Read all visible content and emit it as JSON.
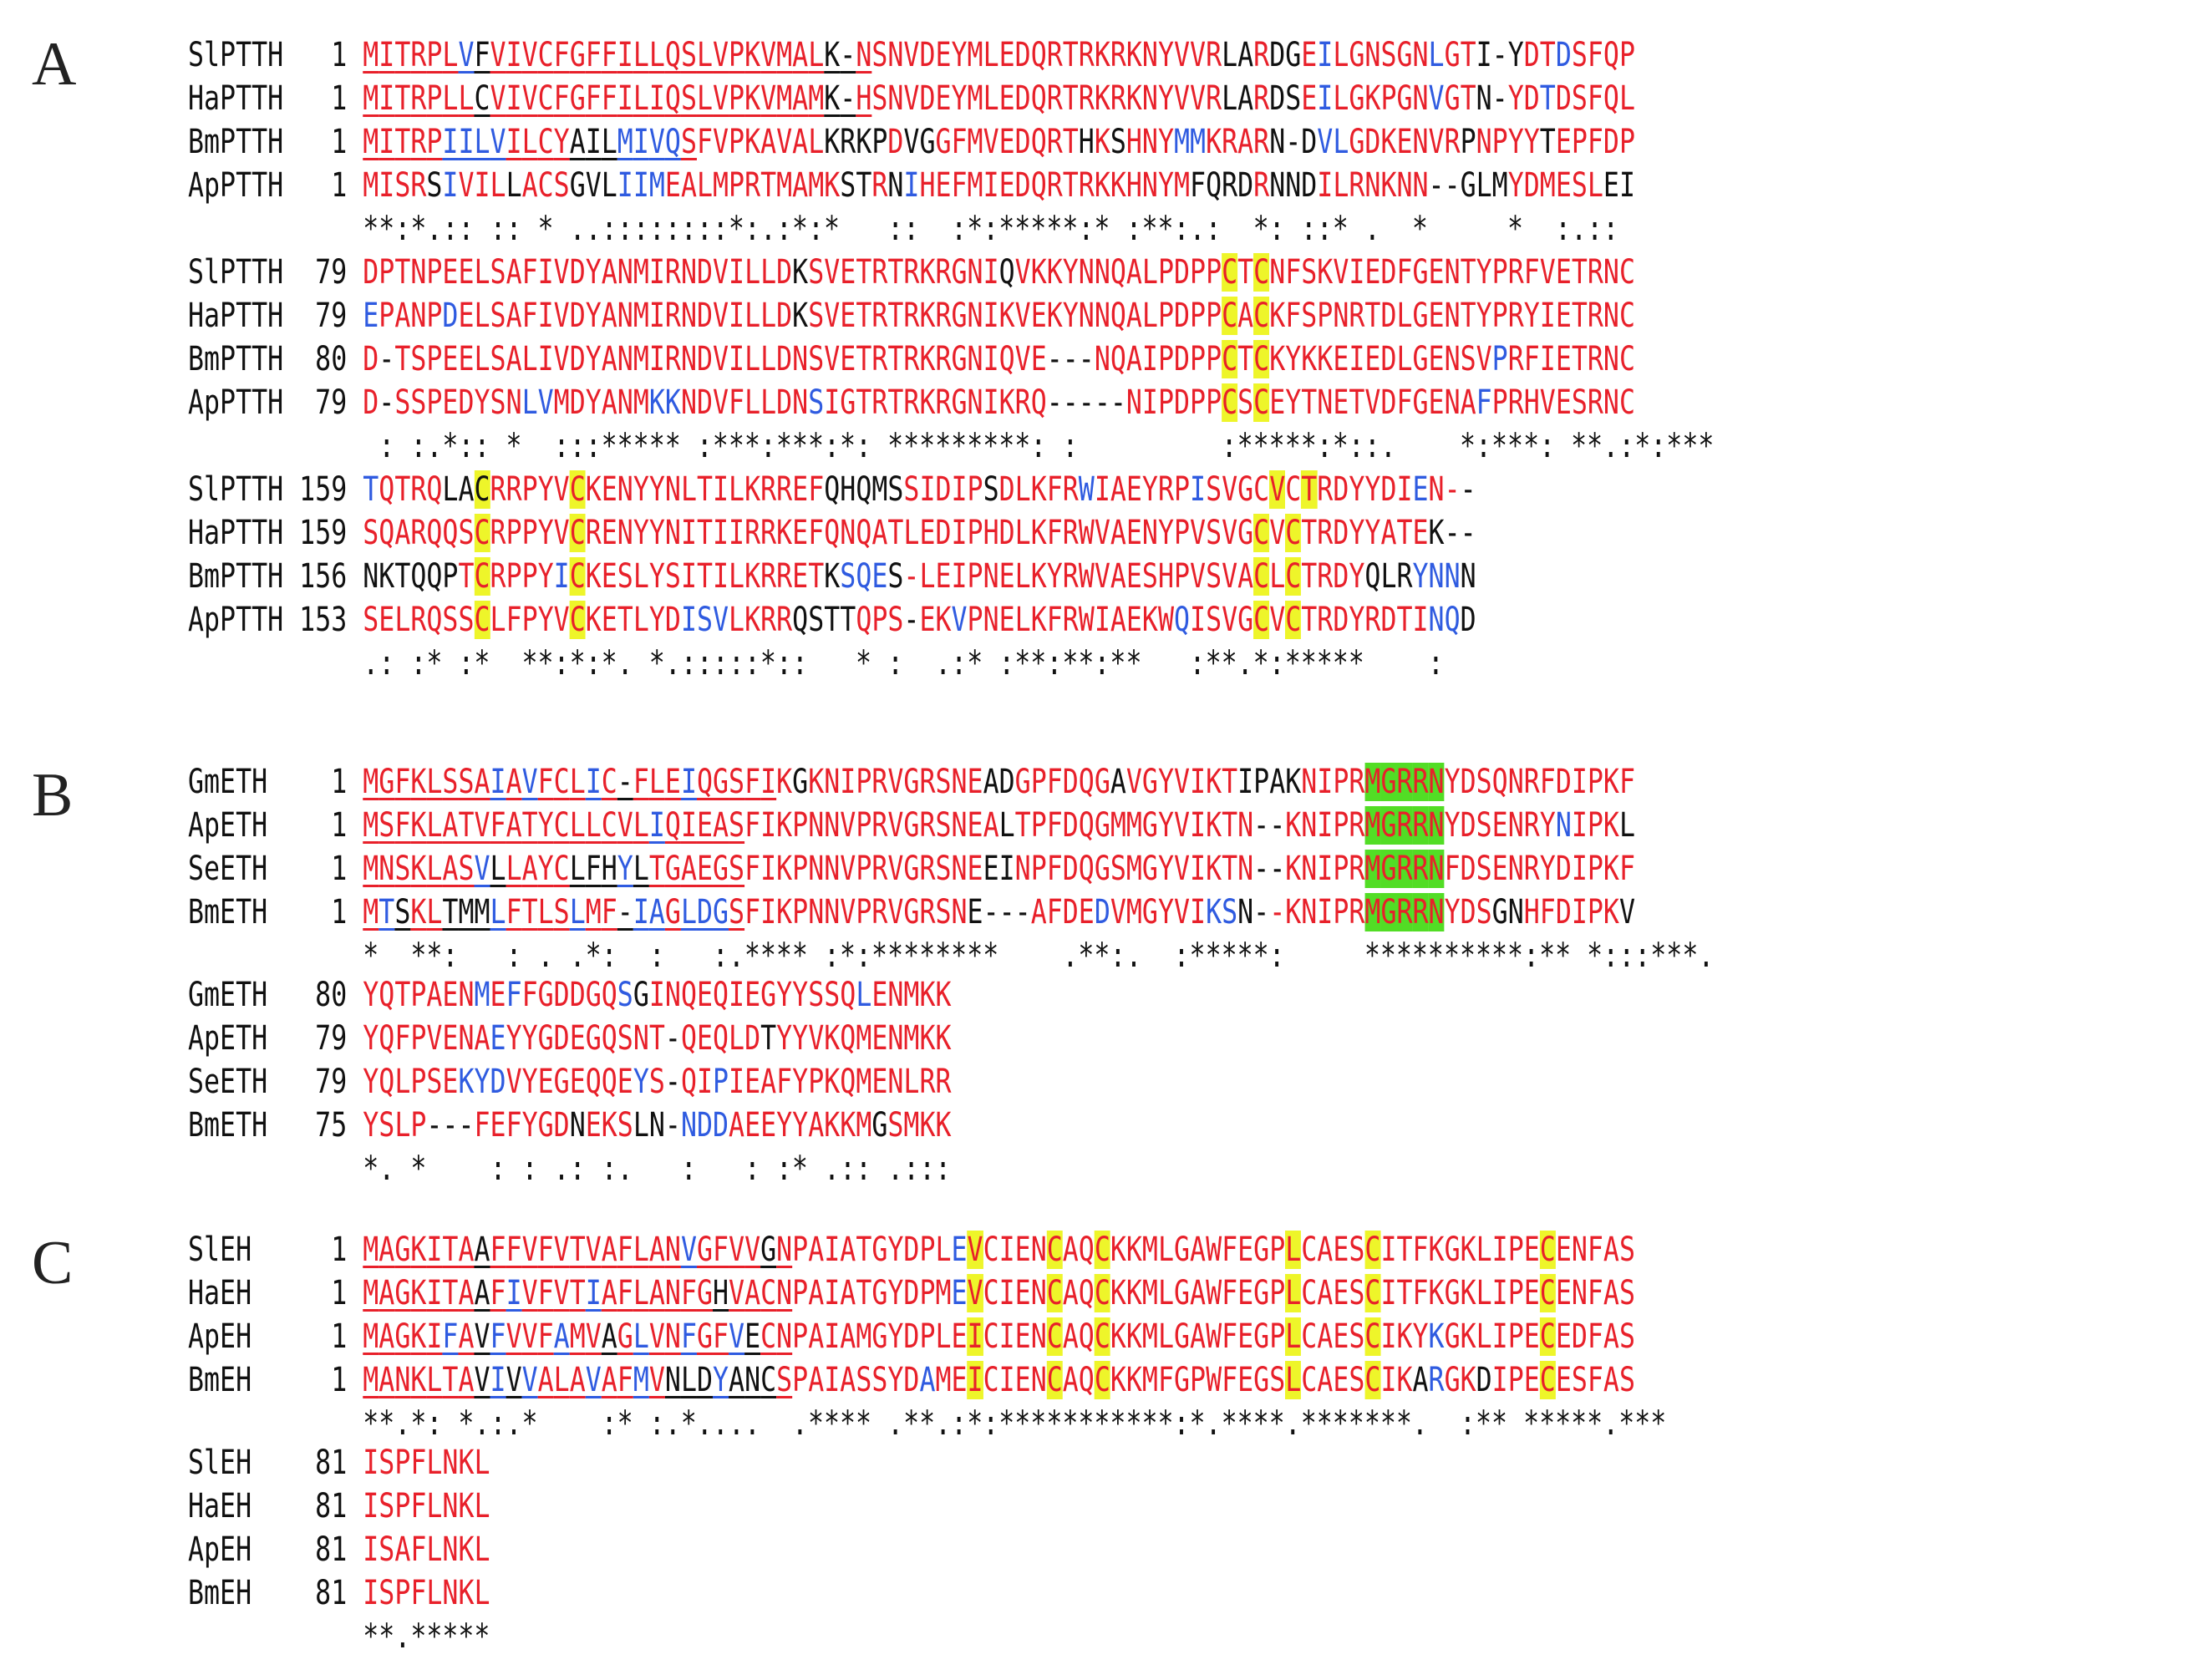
{
  "panels": [
    {
      "label": "A",
      "blocks": [
        {
          "rows": [
            {
              "name": "SlPTTH",
              "start": "1",
              "seq": "MITRPLVFVIVCFGFFILLQSLVPKVMALK-NSNVDEYMLEDQRTRKRKNYVVRLARDGEILGNSGNLGTI-YDTDSFQP",
              "colors": "RRRRRRBKRRRRRRRRRRRRRRRRRRRRRKKRRRRRRRRRRRRRRRRRRRRRRRKKRKKRBRRRRRRBRRKKKRRBRRRRR",
              "ul": [
                0,
                31
              ]
            },
            {
              "name": "HaPTTH",
              "start": "1",
              "seq": "MITRPLLCVIVCFGFFILIQSLVPKVMAMK-HSNVDEYMLEDQRTRKRKNYVVRLARDSEILGKPGNVGTN-YDTDSFQL",
              "colors": "RRRRRRRKRRRRRRRRRRRRRRRRRRRRRKKRRRRRRRRRRRRRRRRRRRRRRRKKRKKRBRRRRRRBRRKKRRBRRRRRK",
              "ul": [
                0,
                31
              ]
            },
            {
              "name": "BmPTTH",
              "start": "1",
              "seq": "MITRPIILVILCYAILMIVQSFVPKAVALKRKPDVGGFMVEDQRTHKSHNYMMKRARN-DVLGDKENVRPNPYYTEPFDP",
              "colors": "RRRRRBBBBRRRRKKKBBBBRRRRRRRRRKKKKRKKRRRRRRRRRKRKRRRBBRRRRKKKBBRRRRRRRKRRRRKRRRRRR",
              "ul": [
                0,
                20
              ]
            },
            {
              "name": "ApPTTH",
              "start": "1",
              "seq": "MISRSIVILLACSGVLIIMEALMPRTMAMKSTRNIHEFMIEDQRTRKKHNYMFQRDRNNDILRNKNN--GLMYDMESLEI",
              "colors": "RRRRKBRRRKRRRKKKBBBRRRRRRRRRRRKKRKBRRRRRRRRRRRRRRRRRKKKKRKKKRRRRRRRKKKKKRRRRRRKKK",
              "ul": []
            }
          ],
          "cons": "**:*.:: :: * ..::::::::*:.:*:*   ::  :*:*****:* :**:.:  *: ::* .  *     *  :.::"
        },
        {
          "rows": [
            {
              "name": "SlPTTH",
              "start": "79",
              "seq": "DPTNPEELSAFIVDYANMIRNDVILLDKSVETRTRKRGNIQVKKYNNQALPDPPCTCNFSKVIEDFGENTYPRFVETRNC",
              "colors": "RRRRRRRRRRRRRRRRRRRRRRRRRRRKRRRRRRRRRRRRKRRRRRRRRRRRRRRRRRRRRRRRRRRRRRRRRRRRRRRRRR",
              "ul": [],
              "hl": [
                54,
                56
              ]
            },
            {
              "name": "HaPTTH",
              "start": "79",
              "seq": "EPANPDELSAFIVDYANMIRNDVILLDKSVETRTRKRGNIKVEKYNNQALPDPPCACKFSPNRTDLGENTYPRYIETRNC",
              "colors": "BRRRRBRRRRRRRRRRRRRRRRRRRRRKRRRRRRRRRRRRRRRRRRRRRRRRRRRRRRRRRRRRRRRRRRRRRRRRRRRRRR",
              "ul": [],
              "hl": [
                54,
                56
              ]
            },
            {
              "name": "BmPTTH",
              "start": "80",
              "seq": "D-TSPEELSALIVDYANMIRNDVILLDNSVETRTRKRGNIQVE---NQAIPDPPCTCKYKKEIEDLGENSVPRFIETRNC",
              "colors": "RKRRRRRRRRRRRRRRRRRRRRRRRRRRRRRRRRRRRRRRRRRKKKRRRRRRRRRRRRRRRRRRRRRRRRRBRRRRRRRRR",
              "ul": [],
              "hl": [
                54,
                56
              ]
            },
            {
              "name": "ApPTTH",
              "start": "79",
              "seq": "D-SSPEDYSNLVMDYANMKKNDVFLLDNSIGTRTRKRGNIKRQ-----NIPDPPCSCEYTNETVDFGENAFPRHVESRNC",
              "colors": "RKRRRRRRRRBBRRRRRRBBRRRRRRRRBRRRRRRRRRRRRRRKKKKKRRRRRRRRRRRRRRRRRRRRRRBRRRRRRRRR",
              "ul": [],
              "hl": [
                54,
                56
              ]
            }
          ],
          "cons": " : :.*:: *  :::***** :***:***:*: *********: :         :*****:*::.    *:***: **.:*:***"
        },
        {
          "rows": [
            {
              "name": "SlPTTH",
              "start": "159",
              "seq": "TQTRQLACRRPYVCKENYYNLTILKRREFQHQMSSIDIPSDLKFRWIAEYRPISVGCVCTRDYYDIEN--",
              "colors": "BRRRRKKKRRRRRRRRRRRRRRRRRRRRRKKKKKRRRRRKRRRRRBRRRRRRBRRRRRRRRRRRRRBRRKK",
              "ul": [],
              "hl": [
                7,
                13,
                57,
                59
              ]
            },
            {
              "name": "HaPTTH",
              "start": "159",
              "seq": "SQARQQSCRPPYVCRENYYNITIIRRKEFQNQATLEDIPHDLKFRWVAENYPVSVGCVCTRDYYATEK--",
              "colors": "RRRRRRRRRRRRRRRRRRRRRRRRRRRRRRRRRRRRRRRRRRRRRRRRRRRRRRRRRRRRRRRRRRRKKK",
              "ul": [],
              "hl": [
                7,
                13,
                56,
                58
              ]
            },
            {
              "name": "BmPTTH",
              "start": "156",
              "seq": "NKTQQPTCRPPYICKESLYSITILKRRETKSQES-LEIPNELKYRWVAESHPVSVACLCTRDYQLRYNNN",
              "colors": "KKKKKKRRRRRRBRRRRRRRRRRRRRRRRKBBBKRRRRRRRRRRRRRRRRRRRRRRRRRRRRRKKKBBB",
              "ul": [],
              "hl": [
                7,
                13,
                56,
                58
              ]
            },
            {
              "name": "ApPTTH",
              "start": "153",
              "seq": "SELRQSSCLFPYVCKETLYDISVLKRRQSTTQPS-EKVPNELKFRWIAEKWQISVGCVCTRDYRDTINQD",
              "colors": "RRRRRRRRRRRRRRRRRRRRBBBRRRRKKKKRRRKRRBRRRRRRRRRRRRRBRRRRRRRRRRRRRRRBBK",
              "ul": [],
              "hl": [
                7,
                13,
                56,
                58
              ]
            }
          ],
          "cons": ".: :* :*  **:*:*. *.:::::*::   * :  .:* :**:**:**   :**.*:*****    :"
        }
      ]
    },
    {
      "label": "B",
      "blocks": [
        {
          "rows": [
            {
              "name": "GmETH",
              "start": "1",
              "seq": "MGFKLSSAIAVFCLIC-FLEIQGSFIKGKNIPRVGRSNEADGPFDQGAVGYVIKTIPAKNIPRMGRRNYDSQNRFDIPKF",
              "colors": "RRRRRRRRBRBRRRBRKRRRBRRRRRRKRRRRRRRRRRRKKRRRRRRKRRRRRRRKKKKRRRRRRRRRRRRRRRRRRRRRRR",
              "ul": [
                0,
                25
              ],
              "hl": [
                63,
                67
              ]
            },
            {
              "name": "ApETH",
              "start": "1",
              "seq": "MSFKLATVFATYCLLCVLIQIEASFIKPNNVPRVGRSNEALTPFDQGMMGYVIKTN--KNIPRMGRRNYDSENRYNIPKL",
              "colors": "RRRRRRRRRRRRRRRRRRBRRRRRRRRRRRRRRRRRRRRRKRRRRRRRRRRRRRRRKKRRRRRRRRRRRRRRRRRBRRRK",
              "ul": [
                0,
                23
              ],
              "hl": [
                63,
                67
              ]
            },
            {
              "name": "SeETH",
              "start": "1",
              "seq": "MNSKLASVLLAYCLFHYLTGAEGSFIKPNNVPRVGRSNEEINPFDQGSMGYVIKTN--KNIPRMGRRNFDSENRYDIPKF",
              "colors": "RRRRRRRBKRRRRKKKBKRRRRRRRRRRRRRRRRRRRRRKKRRRRRRRRRRRRRRRKKRRRRRRRRRRRRRRRRRRRRRR",
              "ul": [
                0,
                23
              ],
              "hl": [
                63,
                67
              ]
            },
            {
              "name": "BmETH",
              "start": "1",
              "seq": "MTSKLTMMLFTLSLMF-IAGLDGSFIKPNNVPRVGRSNE---AFDEDVMGYVIKSN--KNIPRMGRRNYDSGNHFDIPKV",
              "colors": "RBKRRKKKBRRRRBRRKBBRBBBRRRRRRRRRRRRRRRKKKKRRRRBRRRRRRBBKKRRRRRRRRRRRRRRKKRRRRRRK",
              "ul": [
                0,
                23
              ],
              "hl": [
                63,
                67
              ]
            }
          ],
          "cons": "*  **:   : . .*:  :   :.**** :*:********    .**:.  :*****:     **********:** *:::***."
        },
        {
          "rows": [
            {
              "name": "GmETH",
              "start": "80",
              "seq": "YQTPAENMEFFGDDGQSGINQEQIEGYYSSQLENMKK",
              "colors": "RRRRRRRBRBRRRRRRBKRRRRRRRRRRRRRBRRRRR",
              "ul": []
            },
            {
              "name": "ApETH",
              "start": "79",
              "seq": "YQFPVENAEYYGDEGQSNT-QEQLDTYYVKQMENMKK",
              "colors": "RRRRRRRRBRRRRRRRRRRKRRRRRKRRRRRRRRRRR",
              "ul": []
            },
            {
              "name": "SeETH",
              "start": "79",
              "seq": "YQLPSEKYDVYEGEQQEYS-QIPIEAFYPKQMENLRR",
              "colors": "RRRRRRBBBRRRRRRRRBRKRRBRRRRRRRRRRRRRR",
              "ul": []
            },
            {
              "name": "BmETH",
              "start": "75",
              "seq": "YSLP---FEFYGDNEKSLN-NDDAEEYYAKKMGSMKK",
              "colors": "RRRRKKKRRRRRRKRRRKKKBBBRRRRRRRRRKRRRR",
              "ul": []
            }
          ],
          "cons": "*. *    : : .: :.   :   : :* .:: .:::"
        }
      ]
    },
    {
      "label": "C",
      "blocks": [
        {
          "rows": [
            {
              "name": "SlEH",
              "start": "1",
              "seq": "MAGKITAAFFVFVTVAFLANVGFVVGNPAIATGYDPLEVCIENCAQCKKMLGAWFEGPLCAESCITFKGKLIPECENFAS",
              "colors": "RRRRRRRKRRRRRRRRRRRRBRRRRKRRRRRRRRRRRBRRRRRRRRRRRRRRRRRRRRRRRRRRRRRRRRRRRRRRRRRR",
              "ul": [
                0,
                26
              ],
              "hl": [
                38,
                43,
                46,
                58,
                63,
                74
              ]
            },
            {
              "name": "HaEH",
              "start": "1",
              "seq": "MAGKITAAFIVFVTIAFLANFGHVACNPAIATGYDPMEVCIENCAQCKKMLGAWFEGPLCAESCITFKGKLIPECENFAS",
              "colors": "RRRRRRRKRBRRRRBRRRRRRRKRRRRRRRRRRRRRRBRRRRRRRRRRRRRRRRRRRRRRRRRRRRRRRRRRRRRRRRRR",
              "ul": [
                0,
                26
              ],
              "hl": [
                38,
                43,
                46,
                58,
                63,
                74
              ]
            },
            {
              "name": "ApEH",
              "start": "1",
              "seq": "MAGKIFAVFVVFAMVAGLVNFGFVECNPAIAMGYDPLEICIENCAQCKKMLGAWFEGPLCAESCIKYKGKLIPECEDFAS",
              "colors": "RRRRRBRKBRRRBRRKRBRRBRRBKRRRRRRRRRRRRRRRRRRRRRRRRRRRRRRRRRRRRRRRRRRBRRRRRRRRRRRR",
              "ul": [
                0,
                26
              ],
              "hl": [
                38,
                43,
                46,
                58,
                63,
                74
              ]
            },
            {
              "name": "BmEH",
              "start": "1",
              "seq": "MANKLTAVIVVALAVAFMVNLDYANCSPAIASSYDAMEICIENCAQCKKMFGPWFEGSLCAESCIKARGKDIPECESFAS",
              "colors": "RRRRRRRKBKBRRRBRRBRKKKBKKKRRRRRRRRRBRRRRRRRRRRRRRRRRRRRRRRRRRRRRRRKBRRKRRRRRRRRR",
              "ul": [
                0,
                26
              ],
              "hl": [
                38,
                43,
                46,
                58,
                63,
                74
              ]
            }
          ],
          "cons": "**.*: *.:.*    :* :.*....  .**** .**.:*:***********:*.****.*******.  :** *****.***"
        },
        {
          "rows": [
            {
              "name": "SlEH",
              "start": "81",
              "seq": "ISPFLNKL",
              "colors": "RRRRRRRR",
              "ul": []
            },
            {
              "name": "HaEH",
              "start": "81",
              "seq": "ISPFLNKL",
              "colors": "RRRRRRRR",
              "ul": []
            },
            {
              "name": "ApEH",
              "start": "81",
              "seq": "ISAFLNKL",
              "colors": "RRRRRRRR",
              "ul": []
            },
            {
              "name": "BmEH",
              "start": "81",
              "seq": "ISPFLNKL",
              "colors": "RRRRRRRR",
              "ul": []
            }
          ],
          "cons": "**.*****"
        }
      ]
    }
  ]
}
